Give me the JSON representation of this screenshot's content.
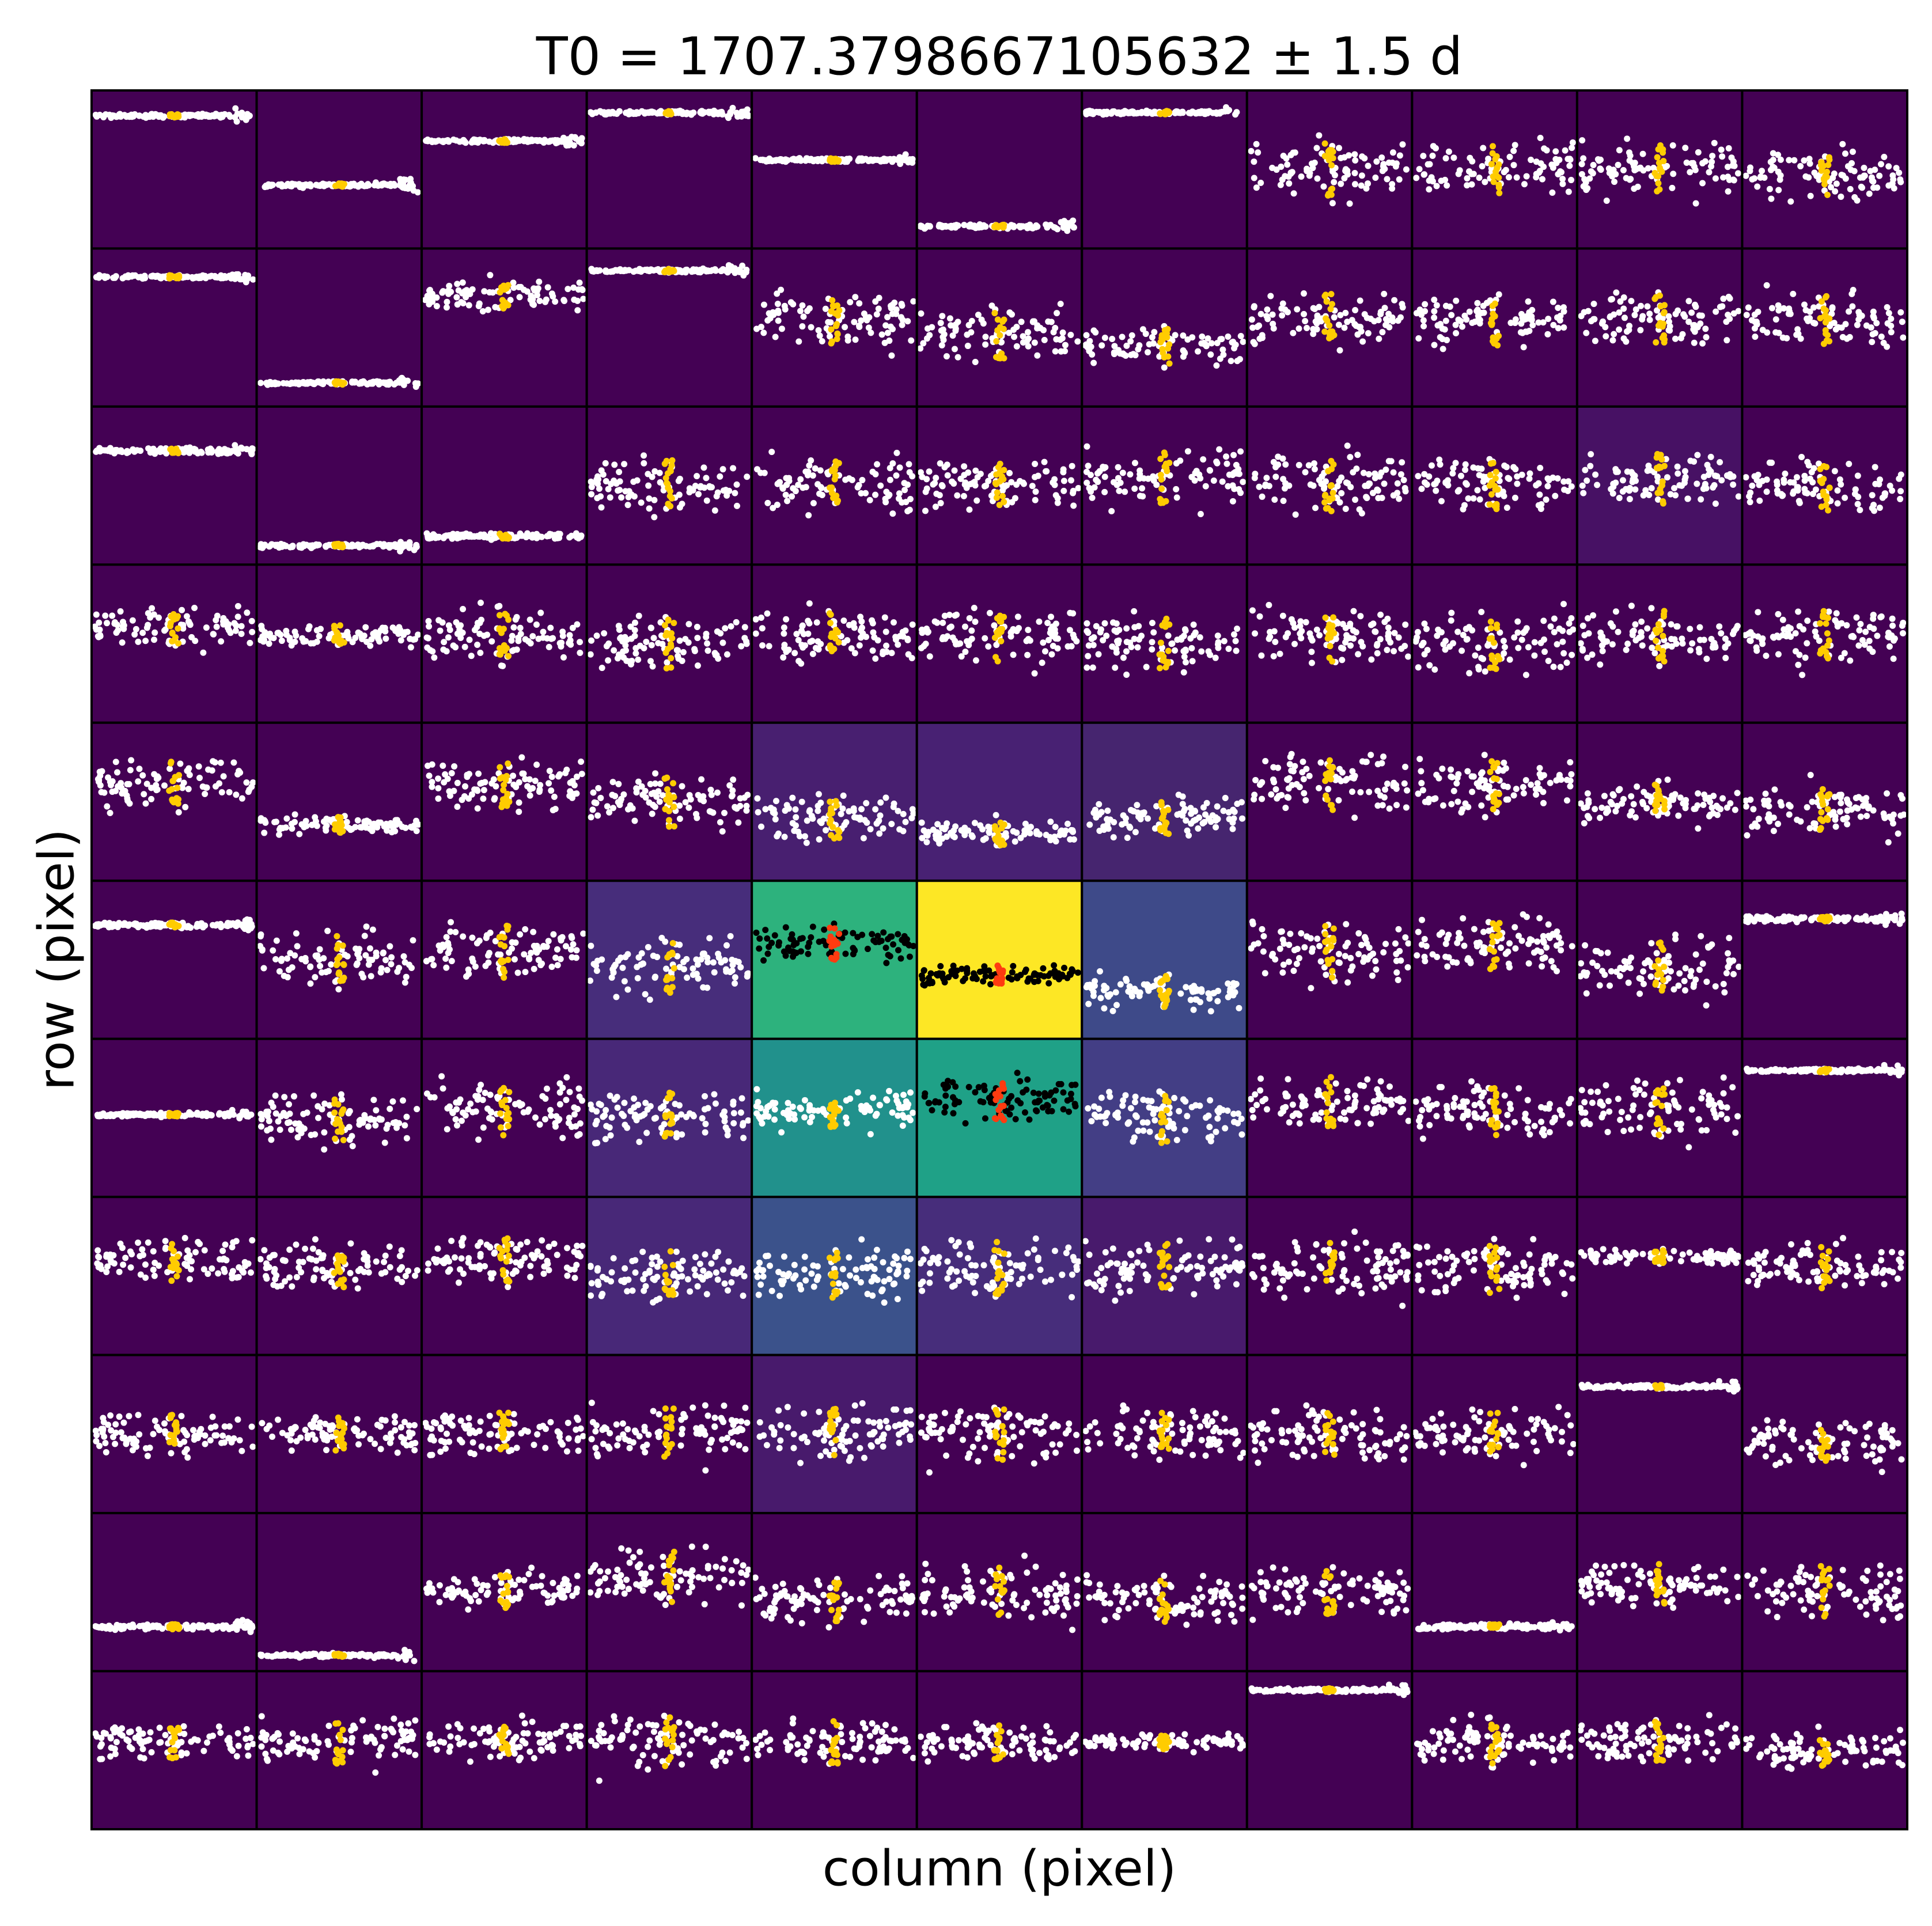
{
  "chart_data": {
    "type": "pixel-grid",
    "title": "T0 = 1707.3798667105632 ± 1.5 d",
    "xlabel": "column (pixel)",
    "ylabel": "row (pixel)",
    "grid": {
      "colors": [
        [
          "#440154",
          "#440154",
          "#440154",
          "#440154",
          "#440154",
          "#440154",
          "#440154",
          "#440154",
          "#440154",
          "#440154",
          "#440154"
        ],
        [
          "#440154",
          "#440154",
          "#440154",
          "#440154",
          "#440154",
          "#440154",
          "#440154",
          "#440154",
          "#440154",
          "#440154",
          "#440154"
        ],
        [
          "#440154",
          "#440154",
          "#440154",
          "#440154",
          "#440154",
          "#440154",
          "#440154",
          "#440154",
          "#440154",
          "#471164",
          "#440154"
        ],
        [
          "#440154",
          "#440154",
          "#440154",
          "#440154",
          "#440154",
          "#440154",
          "#440154",
          "#440154",
          "#440154",
          "#440154",
          "#440154"
        ],
        [
          "#440154",
          "#440154",
          "#440154",
          "#440154",
          "#481f70",
          "#482173",
          "#46256f",
          "#440154",
          "#440154",
          "#440154",
          "#440154"
        ],
        [
          "#440154",
          "#440154",
          "#440154",
          "#472d7b",
          "#2db27d",
          "#fde725",
          "#3e4a89",
          "#440154",
          "#440154",
          "#440154",
          "#440154"
        ],
        [
          "#440154",
          "#440154",
          "#440154",
          "#482878",
          "#21918c",
          "#1fa187",
          "#433e85",
          "#440154",
          "#440154",
          "#440154",
          "#440154"
        ],
        [
          "#440154",
          "#440154",
          "#440154",
          "#482878",
          "#3b528b",
          "#472d7b",
          "#481a6c",
          "#440154",
          "#440154",
          "#440154",
          "#440154"
        ],
        [
          "#440154",
          "#440154",
          "#440154",
          "#440154",
          "#481a6c",
          "#440154",
          "#440154",
          "#440154",
          "#440154",
          "#440154",
          "#440154"
        ],
        [
          "#440154",
          "#440154",
          "#440154",
          "#440154",
          "#440154",
          "#440154",
          "#440154",
          "#440154",
          "#440154",
          "#440154",
          "#440154"
        ],
        [
          "#440154",
          "#440154",
          "#440154",
          "#440154",
          "#440154",
          "#440154",
          "#440154",
          "#440154",
          "#440154",
          "#440154",
          "#440154"
        ]
      ],
      "levels": [
        [
          0.16,
          0.6,
          0.32,
          0.14,
          0.44,
          0.86,
          0.14,
          0.5,
          0.5,
          0.5,
          0.55
        ],
        [
          0.18,
          0.85,
          0.3,
          0.14,
          0.45,
          0.55,
          0.62,
          0.45,
          0.45,
          0.45,
          0.45
        ],
        [
          0.28,
          0.88,
          0.82,
          0.5,
          0.5,
          0.5,
          0.45,
          0.5,
          0.5,
          0.45,
          0.5
        ],
        [
          0.4,
          0.45,
          0.45,
          0.5,
          0.45,
          0.45,
          0.5,
          0.45,
          0.5,
          0.45,
          0.45
        ],
        [
          0.38,
          0.65,
          0.4,
          0.5,
          0.6,
          0.7,
          0.6,
          0.4,
          0.4,
          0.5,
          0.55
        ],
        [
          0.28,
          0.5,
          0.45,
          0.55,
          0.4,
          0.6,
          0.7,
          0.45,
          0.4,
          0.55,
          0.24
        ],
        [
          0.48,
          0.5,
          0.45,
          0.5,
          0.45,
          0.4,
          0.5,
          0.4,
          0.45,
          0.45,
          0.2
        ],
        [
          0.4,
          0.45,
          0.4,
          0.5,
          0.5,
          0.45,
          0.45,
          0.45,
          0.45,
          0.38,
          0.45
        ],
        [
          0.5,
          0.5,
          0.5,
          0.5,
          0.5,
          0.5,
          0.5,
          0.5,
          0.5,
          0.2,
          0.55
        ],
        [
          0.72,
          0.9,
          0.5,
          0.4,
          0.55,
          0.5,
          0.55,
          0.5,
          0.72,
          0.45,
          0.5
        ],
        [
          0.45,
          0.45,
          0.45,
          0.45,
          0.45,
          0.45,
          0.45,
          0.12,
          0.45,
          0.45,
          0.5
        ]
      ],
      "spreads": [
        [
          0.02,
          0.02,
          0.02,
          0.02,
          0.02,
          0.02,
          0.02,
          0.3,
          0.28,
          0.28,
          0.25
        ],
        [
          0.02,
          0.02,
          0.15,
          0.02,
          0.3,
          0.3,
          0.2,
          0.3,
          0.3,
          0.3,
          0.3
        ],
        [
          0.03,
          0.02,
          0.03,
          0.3,
          0.3,
          0.3,
          0.3,
          0.3,
          0.3,
          0.3,
          0.3
        ],
        [
          0.2,
          0.12,
          0.3,
          0.3,
          0.3,
          0.3,
          0.3,
          0.3,
          0.3,
          0.3,
          0.3
        ],
        [
          0.25,
          0.1,
          0.3,
          0.3,
          0.25,
          0.15,
          0.2,
          0.3,
          0.3,
          0.2,
          0.25
        ],
        [
          0.03,
          0.3,
          0.3,
          0.3,
          0.2,
          0.12,
          0.2,
          0.3,
          0.3,
          0.3,
          0.03
        ],
        [
          0.02,
          0.3,
          0.3,
          0.3,
          0.2,
          0.22,
          0.3,
          0.3,
          0.3,
          0.3,
          0.02
        ],
        [
          0.25,
          0.25,
          0.25,
          0.3,
          0.3,
          0.3,
          0.3,
          0.3,
          0.3,
          0.08,
          0.25
        ],
        [
          0.25,
          0.2,
          0.25,
          0.3,
          0.3,
          0.3,
          0.3,
          0.3,
          0.25,
          0.02,
          0.25
        ],
        [
          0.03,
          0.02,
          0.2,
          0.3,
          0.25,
          0.3,
          0.25,
          0.25,
          0.03,
          0.25,
          0.3
        ],
        [
          0.2,
          0.25,
          0.2,
          0.3,
          0.25,
          0.2,
          0.08,
          0.02,
          0.25,
          0.25,
          0.2
        ]
      ],
      "point_colors": [
        [
          "white",
          "white",
          "white",
          "white",
          "white",
          "white",
          "white",
          "white",
          "white",
          "white",
          "white"
        ],
        [
          "white",
          "white",
          "white",
          "white",
          "white",
          "white",
          "white",
          "white",
          "white",
          "white",
          "white"
        ],
        [
          "white",
          "white",
          "white",
          "white",
          "white",
          "white",
          "white",
          "white",
          "white",
          "white",
          "white"
        ],
        [
          "white",
          "white",
          "white",
          "white",
          "white",
          "white",
          "white",
          "white",
          "white",
          "white",
          "white"
        ],
        [
          "white",
          "white",
          "white",
          "white",
          "white",
          "white",
          "white",
          "white",
          "white",
          "white",
          "white"
        ],
        [
          "white",
          "white",
          "white",
          "white",
          "black",
          "black",
          "white",
          "white",
          "white",
          "white",
          "white"
        ],
        [
          "white",
          "white",
          "white",
          "white",
          "white",
          "black",
          "white",
          "white",
          "white",
          "white",
          "white"
        ],
        [
          "white",
          "white",
          "white",
          "white",
          "white",
          "white",
          "white",
          "white",
          "white",
          "white",
          "white"
        ],
        [
          "white",
          "white",
          "white",
          "white",
          "white",
          "white",
          "white",
          "white",
          "white",
          "white",
          "white"
        ],
        [
          "white",
          "white",
          "white",
          "white",
          "white",
          "white",
          "white",
          "white",
          "white",
          "white",
          "white"
        ],
        [
          "white",
          "white",
          "white",
          "white",
          "white",
          "white",
          "white",
          "white",
          "white",
          "white",
          "white"
        ]
      ]
    }
  }
}
